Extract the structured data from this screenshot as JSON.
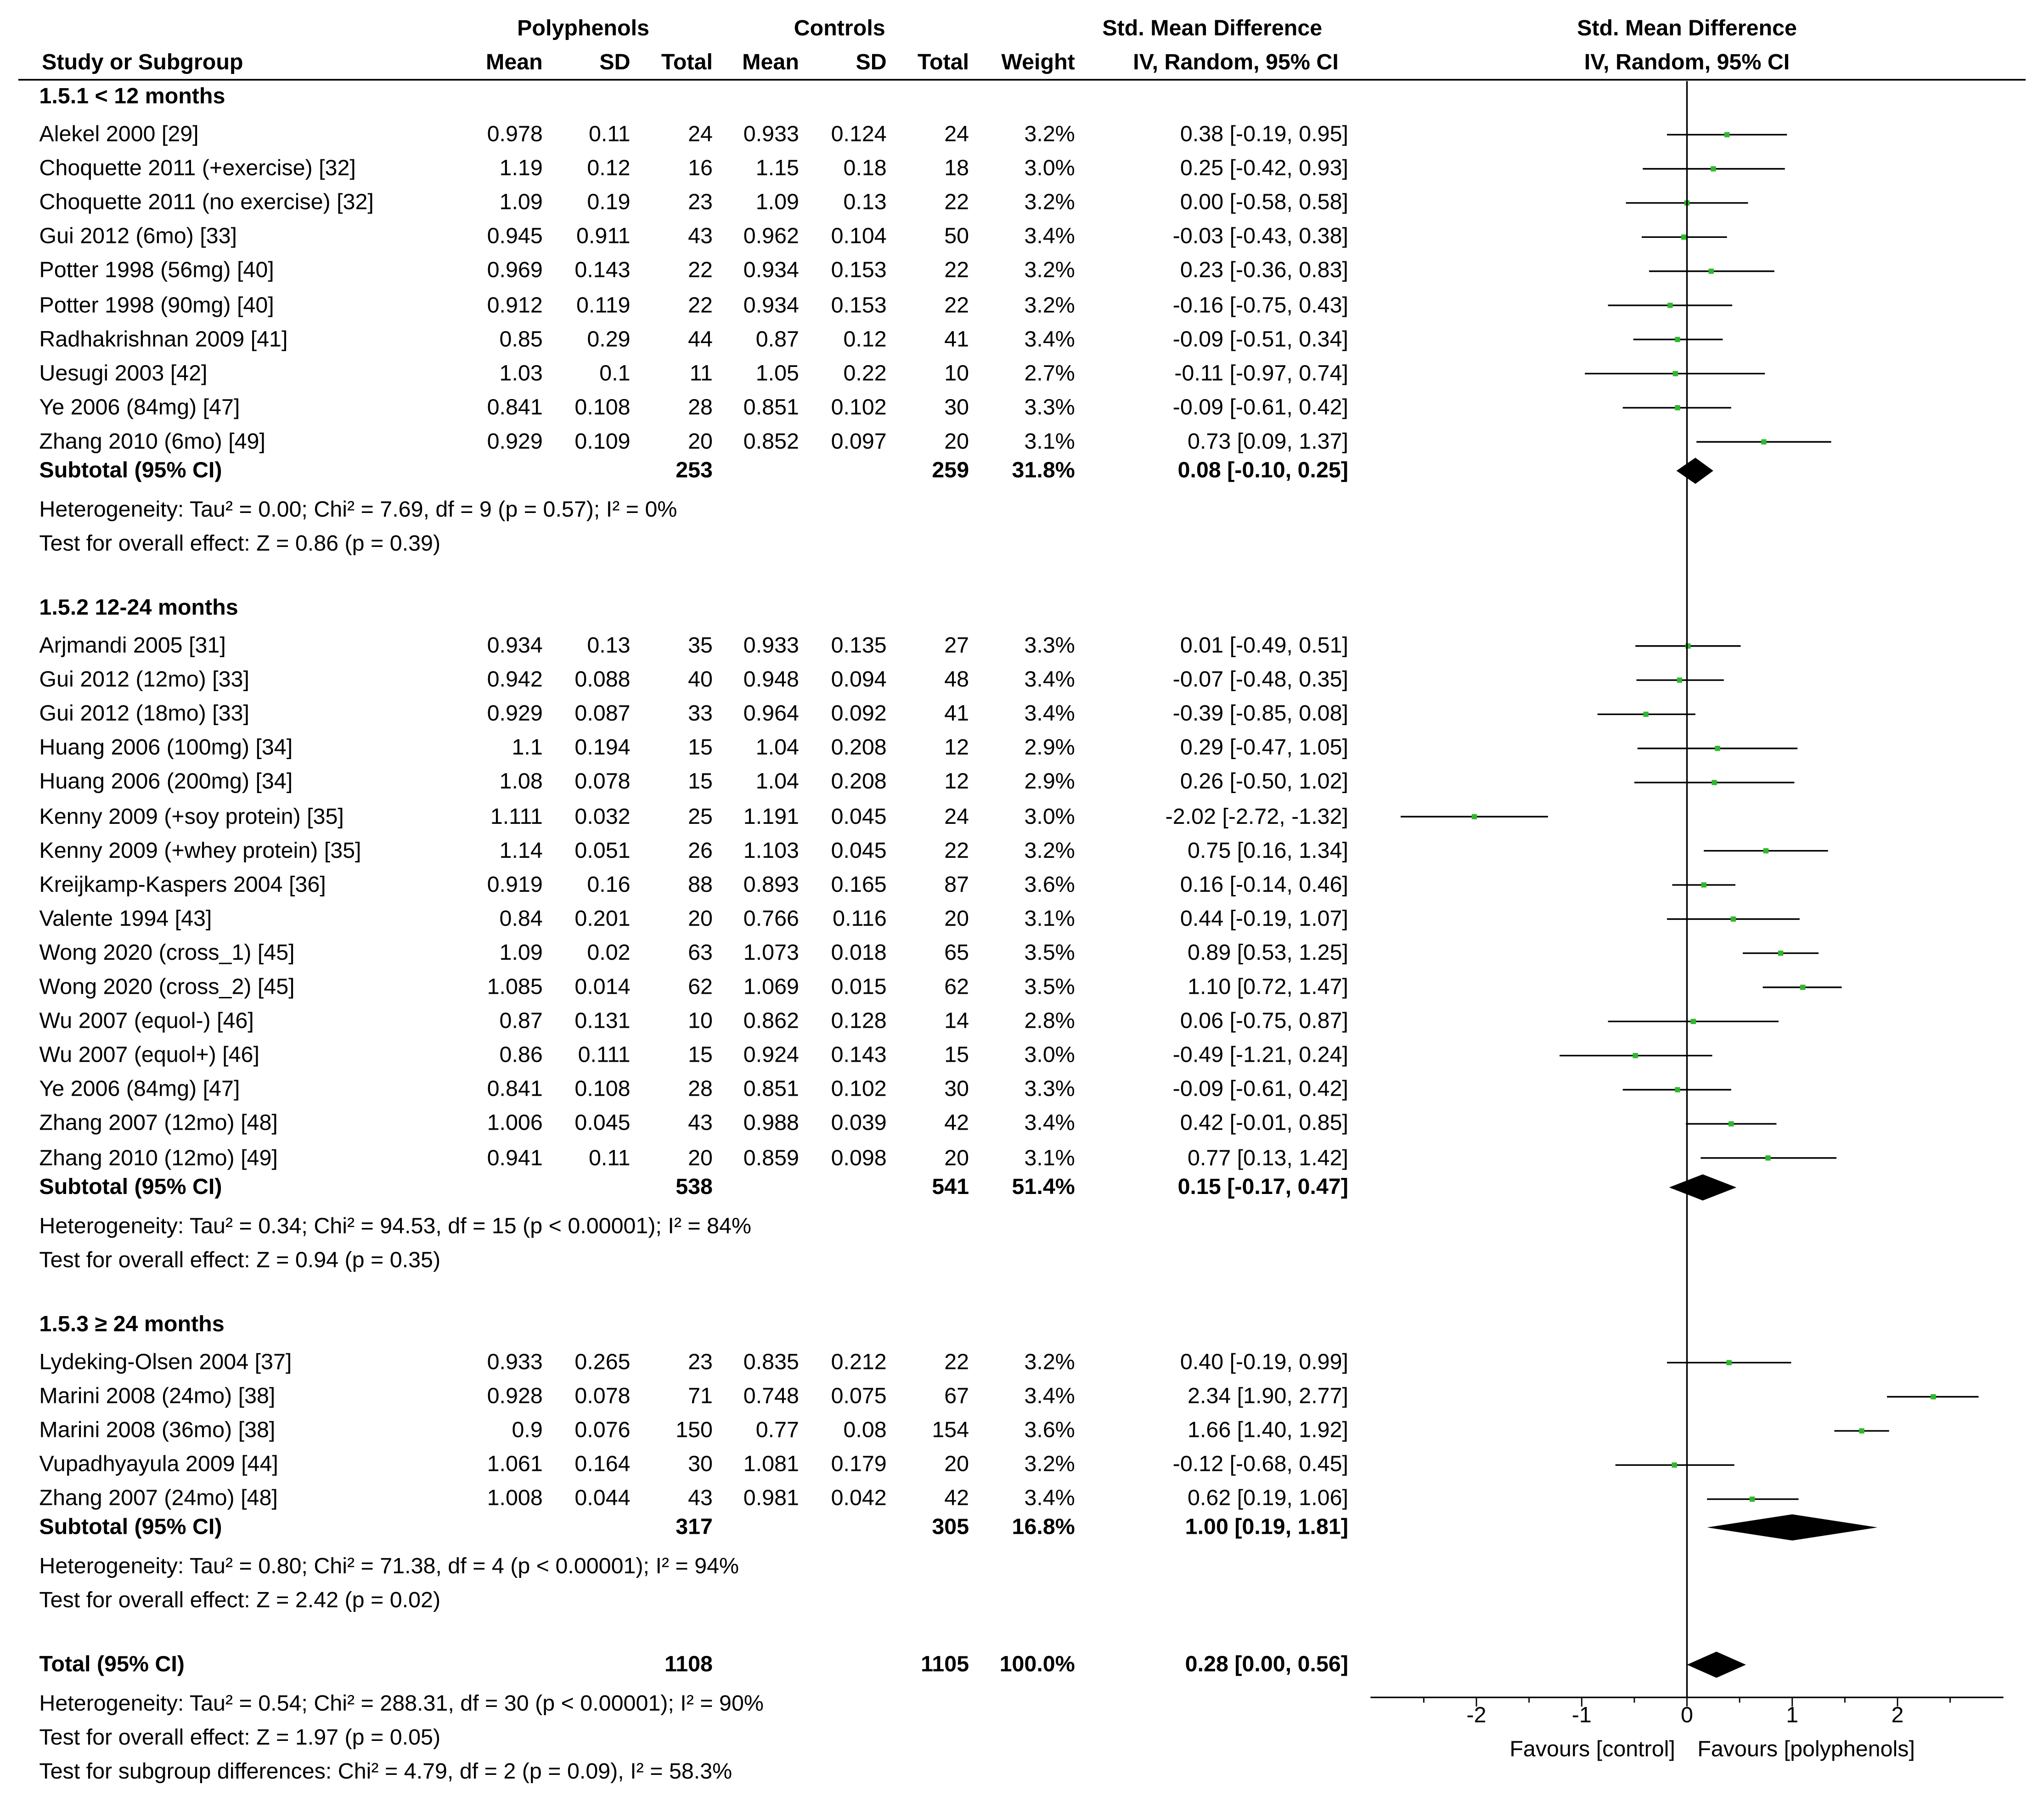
{
  "chart_data": {
    "type": "forest",
    "headers": {
      "group_polyphenols": "Polyphenols",
      "group_controls": "Controls",
      "smd_header": "Std. Mean Difference",
      "smd_method": "IV, Random, 95% CI",
      "plot_header": "Std. Mean Difference",
      "plot_method": "IV, Random, 95% CI",
      "study": "Study or Subgroup",
      "mean": "Mean",
      "sd": "SD",
      "total": "Total",
      "weight": "Weight"
    },
    "x_axis": {
      "min": -3.0,
      "max": 3.0,
      "ticks": [
        {
          "v": -2,
          "label": "-2"
        },
        {
          "v": -1,
          "label": "-1"
        },
        {
          "v": 0,
          "label": "0"
        },
        {
          "v": 1,
          "label": "1"
        },
        {
          "v": 2,
          "label": "2"
        }
      ],
      "favours_left": "Favours [control]",
      "favours_right": "Favours [polyphenols]"
    },
    "subgroups": [
      {
        "title": "1.5.1 < 12 months",
        "studies": [
          {
            "name": "Alekel 2000 [29]",
            "m1": "0.978",
            "sd1": "0.11",
            "n1": "24",
            "m2": "0.933",
            "sd2": "0.124",
            "n2": "24",
            "weight": "3.2%",
            "ci_text": "0.38 [-0.19, 0.95]",
            "est": 0.38,
            "lo": -0.19,
            "hi": 0.95
          },
          {
            "name": "Choquette 2011 (+exercise) [32]",
            "m1": "1.19",
            "sd1": "0.12",
            "n1": "16",
            "m2": "1.15",
            "sd2": "0.18",
            "n2": "18",
            "weight": "3.0%",
            "ci_text": "0.25 [-0.42, 0.93]",
            "est": 0.25,
            "lo": -0.42,
            "hi": 0.93
          },
          {
            "name": "Choquette 2011 (no exercise) [32]",
            "m1": "1.09",
            "sd1": "0.19",
            "n1": "23",
            "m2": "1.09",
            "sd2": "0.13",
            "n2": "22",
            "weight": "3.2%",
            "ci_text": "0.00 [-0.58, 0.58]",
            "est": 0.0,
            "lo": -0.58,
            "hi": 0.58
          },
          {
            "name": "Gui 2012 (6mo) [33]",
            "m1": "0.945",
            "sd1": "0.911",
            "n1": "43",
            "m2": "0.962",
            "sd2": "0.104",
            "n2": "50",
            "weight": "3.4%",
            "ci_text": "-0.03 [-0.43, 0.38]",
            "est": -0.03,
            "lo": -0.43,
            "hi": 0.38
          },
          {
            "name": "Potter 1998 (56mg) [40]",
            "m1": "0.969",
            "sd1": "0.143",
            "n1": "22",
            "m2": "0.934",
            "sd2": "0.153",
            "n2": "22",
            "weight": "3.2%",
            "ci_text": "0.23 [-0.36, 0.83]",
            "est": 0.23,
            "lo": -0.36,
            "hi": 0.83
          },
          {
            "name": "Potter 1998 (90mg) [40]",
            "m1": "0.912",
            "sd1": "0.119",
            "n1": "22",
            "m2": "0.934",
            "sd2": "0.153",
            "n2": "22",
            "weight": "3.2%",
            "ci_text": "-0.16 [-0.75, 0.43]",
            "est": -0.16,
            "lo": -0.75,
            "hi": 0.43
          },
          {
            "name": "Radhakrishnan 2009 [41]",
            "m1": "0.85",
            "sd1": "0.29",
            "n1": "44",
            "m2": "0.87",
            "sd2": "0.12",
            "n2": "41",
            "weight": "3.4%",
            "ci_text": "-0.09 [-0.51, 0.34]",
            "est": -0.09,
            "lo": -0.51,
            "hi": 0.34
          },
          {
            "name": "Uesugi 2003 [42]",
            "m1": "1.03",
            "sd1": "0.1",
            "n1": "11",
            "m2": "1.05",
            "sd2": "0.22",
            "n2": "10",
            "weight": "2.7%",
            "ci_text": "-0.11 [-0.97, 0.74]",
            "est": -0.11,
            "lo": -0.97,
            "hi": 0.74
          },
          {
            "name": "Ye 2006 (84mg) [47]",
            "m1": "0.841",
            "sd1": "0.108",
            "n1": "28",
            "m2": "0.851",
            "sd2": "0.102",
            "n2": "30",
            "weight": "3.3%",
            "ci_text": "-0.09 [-0.61, 0.42]",
            "est": -0.09,
            "lo": -0.61,
            "hi": 0.42
          },
          {
            "name": "Zhang 2010 (6mo) [49]",
            "m1": "0.929",
            "sd1": "0.109",
            "n1": "20",
            "m2": "0.852",
            "sd2": "0.097",
            "n2": "20",
            "weight": "3.1%",
            "ci_text": "0.73 [0.09, 1.37]",
            "est": 0.73,
            "lo": 0.09,
            "hi": 1.37
          }
        ],
        "subtotal": {
          "label": "Subtotal (95% CI)",
          "n1": "253",
          "n2": "259",
          "weight": "31.8%",
          "ci_text": "0.08 [-0.10, 0.25]",
          "est": 0.08,
          "lo": -0.1,
          "hi": 0.25
        },
        "heterogeneity": "Heterogeneity: Tau² = 0.00; Chi² = 7.69, df = 9 (p = 0.57); I² = 0%",
        "overall": "Test for overall effect: Z = 0.86 (p = 0.39)"
      },
      {
        "title": "1.5.2 12-24 months",
        "studies": [
          {
            "name": "Arjmandi 2005 [31]",
            "m1": "0.934",
            "sd1": "0.13",
            "n1": "35",
            "m2": "0.933",
            "sd2": "0.135",
            "n2": "27",
            "weight": "3.3%",
            "ci_text": "0.01 [-0.49, 0.51]",
            "est": 0.01,
            "lo": -0.49,
            "hi": 0.51
          },
          {
            "name": "Gui 2012 (12mo) [33]",
            "m1": "0.942",
            "sd1": "0.088",
            "n1": "40",
            "m2": "0.948",
            "sd2": "0.094",
            "n2": "48",
            "weight": "3.4%",
            "ci_text": "-0.07 [-0.48, 0.35]",
            "est": -0.07,
            "lo": -0.48,
            "hi": 0.35
          },
          {
            "name": "Gui 2012 (18mo) [33]",
            "m1": "0.929",
            "sd1": "0.087",
            "n1": "33",
            "m2": "0.964",
            "sd2": "0.092",
            "n2": "41",
            "weight": "3.4%",
            "ci_text": "-0.39 [-0.85, 0.08]",
            "est": -0.39,
            "lo": -0.85,
            "hi": 0.08
          },
          {
            "name": "Huang 2006 (100mg) [34]",
            "m1": "1.1",
            "sd1": "0.194",
            "n1": "15",
            "m2": "1.04",
            "sd2": "0.208",
            "n2": "12",
            "weight": "2.9%",
            "ci_text": "0.29 [-0.47, 1.05]",
            "est": 0.29,
            "lo": -0.47,
            "hi": 1.05
          },
          {
            "name": "Huang 2006 (200mg) [34]",
            "m1": "1.08",
            "sd1": "0.078",
            "n1": "15",
            "m2": "1.04",
            "sd2": "0.208",
            "n2": "12",
            "weight": "2.9%",
            "ci_text": "0.26 [-0.50, 1.02]",
            "est": 0.26,
            "lo": -0.5,
            "hi": 1.02
          },
          {
            "name": "Kenny 2009 (+soy protein) [35]",
            "m1": "1.111",
            "sd1": "0.032",
            "n1": "25",
            "m2": "1.191",
            "sd2": "0.045",
            "n2": "24",
            "weight": "3.0%",
            "ci_text": "-2.02 [-2.72, -1.32]",
            "est": -2.02,
            "lo": -2.72,
            "hi": -1.32
          },
          {
            "name": "Kenny 2009 (+whey protein)  [35]",
            "m1": "1.14",
            "sd1": "0.051",
            "n1": "26",
            "m2": "1.103",
            "sd2": "0.045",
            "n2": "22",
            "weight": "3.2%",
            "ci_text": "0.75 [0.16, 1.34]",
            "est": 0.75,
            "lo": 0.16,
            "hi": 1.34
          },
          {
            "name": "Kreijkamp-Kaspers 2004  [36]",
            "m1": "0.919",
            "sd1": "0.16",
            "n1": "88",
            "m2": "0.893",
            "sd2": "0.165",
            "n2": "87",
            "weight": "3.6%",
            "ci_text": "0.16 [-0.14, 0.46]",
            "est": 0.16,
            "lo": -0.14,
            "hi": 0.46
          },
          {
            "name": "Valente 1994 [43]",
            "m1": "0.84",
            "sd1": "0.201",
            "n1": "20",
            "m2": "0.766",
            "sd2": "0.116",
            "n2": "20",
            "weight": "3.1%",
            "ci_text": "0.44 [-0.19, 1.07]",
            "est": 0.44,
            "lo": -0.19,
            "hi": 1.07
          },
          {
            "name": "Wong 2020 (cross_1) [45]",
            "m1": "1.09",
            "sd1": "0.02",
            "n1": "63",
            "m2": "1.073",
            "sd2": "0.018",
            "n2": "65",
            "weight": "3.5%",
            "ci_text": "0.89 [0.53, 1.25]",
            "est": 0.89,
            "lo": 0.53,
            "hi": 1.25
          },
          {
            "name": "Wong 2020 (cross_2) [45]",
            "m1": "1.085",
            "sd1": "0.014",
            "n1": "62",
            "m2": "1.069",
            "sd2": "0.015",
            "n2": "62",
            "weight": "3.5%",
            "ci_text": "1.10 [0.72, 1.47]",
            "est": 1.1,
            "lo": 0.72,
            "hi": 1.47
          },
          {
            "name": "Wu 2007 (equol-) [46]",
            "m1": "0.87",
            "sd1": "0.131",
            "n1": "10",
            "m2": "0.862",
            "sd2": "0.128",
            "n2": "14",
            "weight": "2.8%",
            "ci_text": "0.06 [-0.75, 0.87]",
            "est": 0.06,
            "lo": -0.75,
            "hi": 0.87
          },
          {
            "name": "Wu 2007 (equol+) [46]",
            "m1": "0.86",
            "sd1": "0.111",
            "n1": "15",
            "m2": "0.924",
            "sd2": "0.143",
            "n2": "15",
            "weight": "3.0%",
            "ci_text": "-0.49 [-1.21, 0.24]",
            "est": -0.49,
            "lo": -1.21,
            "hi": 0.24
          },
          {
            "name": "Ye 2006 (84mg) [47]",
            "m1": "0.841",
            "sd1": "0.108",
            "n1": "28",
            "m2": "0.851",
            "sd2": "0.102",
            "n2": "30",
            "weight": "3.3%",
            "ci_text": "-0.09 [-0.61, 0.42]",
            "est": -0.09,
            "lo": -0.61,
            "hi": 0.42
          },
          {
            "name": "Zhang 2007 (12mo) [48]",
            "m1": "1.006",
            "sd1": "0.045",
            "n1": "43",
            "m2": "0.988",
            "sd2": "0.039",
            "n2": "42",
            "weight": "3.4%",
            "ci_text": "0.42 [-0.01, 0.85]",
            "est": 0.42,
            "lo": -0.01,
            "hi": 0.85
          },
          {
            "name": "Zhang 2010 (12mo) [49]",
            "m1": "0.941",
            "sd1": "0.11",
            "n1": "20",
            "m2": "0.859",
            "sd2": "0.098",
            "n2": "20",
            "weight": "3.1%",
            "ci_text": "0.77 [0.13, 1.42]",
            "est": 0.77,
            "lo": 0.13,
            "hi": 1.42
          }
        ],
        "subtotal": {
          "label": "Subtotal (95% CI)",
          "n1": "538",
          "n2": "541",
          "weight": "51.4%",
          "ci_text": "0.15 [-0.17, 0.47]",
          "est": 0.15,
          "lo": -0.17,
          "hi": 0.47
        },
        "heterogeneity": "Heterogeneity: Tau² = 0.34; Chi² = 94.53, df = 15 (p < 0.00001); I² = 84%",
        "overall": "Test for overall effect: Z = 0.94 (p = 0.35)"
      },
      {
        "title": "1.5.3 ≥ 24 months",
        "studies": [
          {
            "name": "Lydeking-Olsen 2004  [37]",
            "m1": "0.933",
            "sd1": "0.265",
            "n1": "23",
            "m2": "0.835",
            "sd2": "0.212",
            "n2": "22",
            "weight": "3.2%",
            "ci_text": "0.40 [-0.19, 0.99]",
            "est": 0.4,
            "lo": -0.19,
            "hi": 0.99
          },
          {
            "name": "Marini 2008 (24mo)  [38]",
            "m1": "0.928",
            "sd1": "0.078",
            "n1": "71",
            "m2": "0.748",
            "sd2": "0.075",
            "n2": "67",
            "weight": "3.4%",
            "ci_text": "2.34 [1.90, 2.77]",
            "est": 2.34,
            "lo": 1.9,
            "hi": 2.77
          },
          {
            "name": "Marini 2008 (36mo) [38]",
            "m1": "0.9",
            "sd1": "0.076",
            "n1": "150",
            "m2": "0.77",
            "sd2": "0.08",
            "n2": "154",
            "weight": "3.6%",
            "ci_text": "1.66 [1.40, 1.92]",
            "est": 1.66,
            "lo": 1.4,
            "hi": 1.92
          },
          {
            "name": "Vupadhyayula 2009 [44]",
            "m1": "1.061",
            "sd1": "0.164",
            "n1": "30",
            "m2": "1.081",
            "sd2": "0.179",
            "n2": "20",
            "weight": "3.2%",
            "ci_text": "-0.12 [-0.68, 0.45]",
            "est": -0.12,
            "lo": -0.68,
            "hi": 0.45
          },
          {
            "name": "Zhang 2007 (24mo) [48]",
            "m1": "1.008",
            "sd1": "0.044",
            "n1": "43",
            "m2": "0.981",
            "sd2": "0.042",
            "n2": "42",
            "weight": "3.4%",
            "ci_text": "0.62 [0.19, 1.06]",
            "est": 0.62,
            "lo": 0.19,
            "hi": 1.06
          }
        ],
        "subtotal": {
          "label": "Subtotal (95% CI)",
          "n1": "317",
          "n2": "305",
          "weight": "16.8%",
          "ci_text": "1.00 [0.19, 1.81]",
          "est": 1.0,
          "lo": 0.19,
          "hi": 1.81
        },
        "heterogeneity": "Heterogeneity: Tau² = 0.80; Chi² = 71.38, df = 4 (p < 0.00001); I² = 94%",
        "overall": "Test for overall effect: Z = 2.42 (p = 0.02)"
      }
    ],
    "total": {
      "label": "Total (95% CI)",
      "n1": "1108",
      "n2": "1105",
      "weight": "100.0%",
      "ci_text": "0.28 [0.00, 0.56]",
      "est": 0.28,
      "lo": 0.0,
      "hi": 0.56
    },
    "footer": [
      "Heterogeneity: Tau² = 0.54; Chi² = 288.31, df = 30 (p < 0.00001); I² = 90%",
      "Test for overall effect: Z = 1.97 (p = 0.05)",
      "Test for subgroup differences: Chi² = 4.79, df = 2 (p = 0.09), I² = 58.3%"
    ],
    "colors": {
      "point": "#2fb82f",
      "line": "#000000",
      "diamond": "#000000"
    }
  }
}
